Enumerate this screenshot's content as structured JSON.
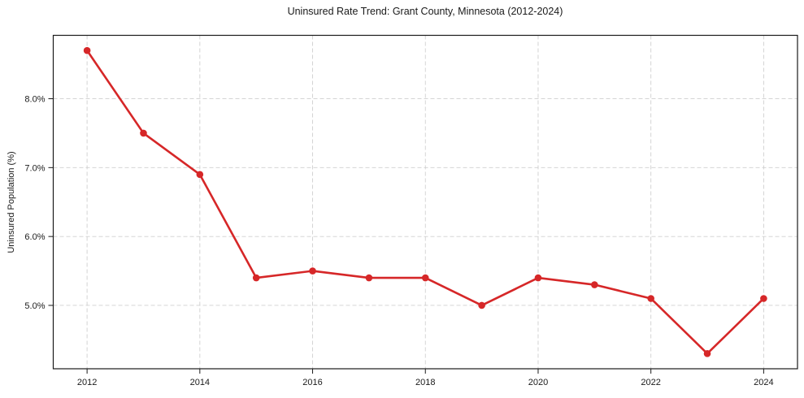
{
  "chart_data": {
    "type": "line",
    "title": "Uninsured Rate Trend: Grant County, Minnesota (2012-2024)",
    "xlabel": "",
    "ylabel": "Uninsured Population (%)",
    "x": [
      2012,
      2013,
      2014,
      2015,
      2016,
      2017,
      2018,
      2019,
      2020,
      2021,
      2022,
      2023,
      2024
    ],
    "series": [
      {
        "name": "Uninsured rate",
        "values": [
          8.7,
          7.5,
          6.9,
          5.4,
          5.5,
          5.4,
          5.4,
          5.0,
          5.4,
          5.3,
          5.1,
          4.3,
          5.1
        ]
      }
    ],
    "x_ticks": [
      2012,
      2014,
      2016,
      2018,
      2020,
      2022,
      2024
    ],
    "x_tick_labels": [
      "2012",
      "2014",
      "2016",
      "2018",
      "2020",
      "2022",
      "2024"
    ],
    "y_ticks": [
      5.0,
      6.0,
      7.0,
      8.0
    ],
    "y_tick_labels": [
      "5.0%",
      "6.0%",
      "7.0%",
      "8.0%"
    ],
    "xlim": [
      2011.4,
      2024.6
    ],
    "ylim": [
      4.08,
      8.92
    ],
    "grid": true,
    "grid_style": "dashed",
    "legend": "none",
    "colors": {
      "line": "#d62728",
      "marker": "#d62728",
      "grid": "#cfcfcf",
      "spine": "#1a1a1a",
      "background": "#ffffff"
    }
  }
}
